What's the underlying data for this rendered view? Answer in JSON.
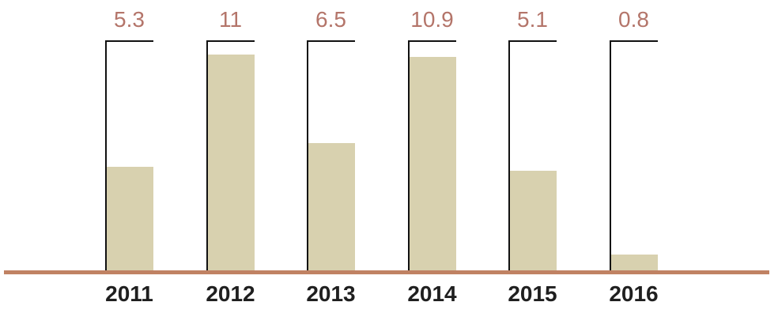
{
  "chart_data": {
    "type": "bar",
    "categories": [
      "2011",
      "2012",
      "2013",
      "2014",
      "2015",
      "2016"
    ],
    "values": [
      5.3,
      11,
      6.5,
      10.9,
      5.1,
      0.8
    ],
    "value_labels": [
      "5.3",
      "11",
      "6.5",
      "10.9",
      "5.1",
      "0.8"
    ],
    "title": "",
    "xlabel": "",
    "ylabel": "",
    "ylim": [
      0,
      11.7
    ],
    "grid": false,
    "legend": false,
    "bar_frame": "open-bracket-reference-frame-per-bar",
    "colors": {
      "background": "#ffffff",
      "bar_fill": "#d8d1af",
      "frame_line": "#111111",
      "value_label": "#b4756a",
      "category_label": "#1f1f1f",
      "baseline": "#c08263"
    }
  }
}
